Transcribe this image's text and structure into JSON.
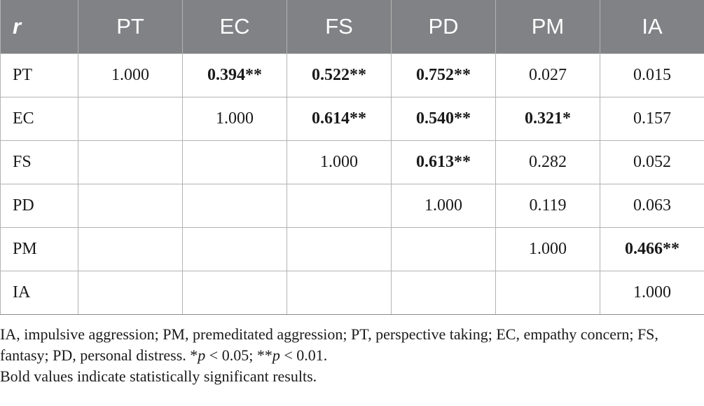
{
  "table": {
    "corner_label": "r",
    "columns": [
      "PT",
      "EC",
      "FS",
      "PD",
      "PM",
      "IA"
    ],
    "rows": [
      {
        "label": "PT",
        "cells": [
          {
            "value": "1.000",
            "bold": false
          },
          {
            "value": "0.394**",
            "bold": true
          },
          {
            "value": "0.522**",
            "bold": true
          },
          {
            "value": "0.752**",
            "bold": true
          },
          {
            "value": "0.027",
            "bold": false
          },
          {
            "value": "0.015",
            "bold": false
          }
        ]
      },
      {
        "label": "EC",
        "cells": [
          {
            "value": "",
            "bold": false
          },
          {
            "value": "1.000",
            "bold": false
          },
          {
            "value": "0.614**",
            "bold": true
          },
          {
            "value": "0.540**",
            "bold": true
          },
          {
            "value": "0.321*",
            "bold": true
          },
          {
            "value": "0.157",
            "bold": false
          }
        ]
      },
      {
        "label": "FS",
        "cells": [
          {
            "value": "",
            "bold": false
          },
          {
            "value": "",
            "bold": false
          },
          {
            "value": "1.000",
            "bold": false
          },
          {
            "value": "0.613**",
            "bold": true
          },
          {
            "value": "0.282",
            "bold": false
          },
          {
            "value": "0.052",
            "bold": false
          }
        ]
      },
      {
        "label": "PD",
        "cells": [
          {
            "value": "",
            "bold": false
          },
          {
            "value": "",
            "bold": false
          },
          {
            "value": "",
            "bold": false
          },
          {
            "value": "1.000",
            "bold": false
          },
          {
            "value": "0.119",
            "bold": false
          },
          {
            "value": "0.063",
            "bold": false
          }
        ]
      },
      {
        "label": "PM",
        "cells": [
          {
            "value": "",
            "bold": false
          },
          {
            "value": "",
            "bold": false
          },
          {
            "value": "",
            "bold": false
          },
          {
            "value": "",
            "bold": false
          },
          {
            "value": "1.000",
            "bold": false
          },
          {
            "value": "0.466**",
            "bold": true
          }
        ]
      },
      {
        "label": "IA",
        "cells": [
          {
            "value": "",
            "bold": false
          },
          {
            "value": "",
            "bold": false
          },
          {
            "value": "",
            "bold": false
          },
          {
            "value": "",
            "bold": false
          },
          {
            "value": "",
            "bold": false
          },
          {
            "value": "1.000",
            "bold": false
          }
        ]
      }
    ]
  },
  "notes": {
    "abbreviations": "IA, impulsive aggression; PM, premeditated aggression; PT, perspective taking; EC, empathy concern; FS, fantasy; PD, personal distress.",
    "sig_star_1": "*",
    "sig_p_1": "p",
    "sig_rest_1": " < 0.05; ",
    "sig_star_2": "**",
    "sig_p_2": "p",
    "sig_rest_2": " < 0.01.",
    "bold_note": "Bold values indicate statistically significant results."
  },
  "colors": {
    "header_bg": "#818285",
    "header_text": "#ffffff",
    "grid_line": "#b3b3b3"
  }
}
